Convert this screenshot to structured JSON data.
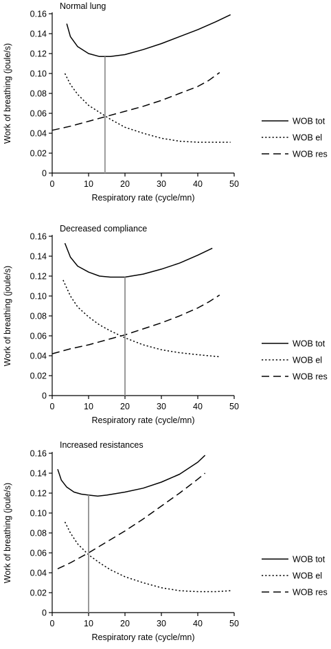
{
  "chart_data": [
    {
      "type": "line",
      "title": "Normal lung",
      "xlabel": "Respiratory rate (cycle/mn)",
      "ylabel": "Work of breathing (joule/s)",
      "xlim": [
        0,
        50
      ],
      "ylim": [
        0,
        0.16
      ],
      "x_ticks": [
        "0",
        "10",
        "20",
        "30",
        "40",
        "50"
      ],
      "y_ticks": [
        "0",
        "0.02",
        "0.04",
        "0.06",
        "0.08",
        "0.10",
        "0.12",
        "0.14",
        "0.16"
      ],
      "grid": false,
      "legend_position": "right",
      "optimum_rate": 14.5,
      "series": [
        {
          "name": "WOB tot",
          "style": "solid",
          "x": [
            4,
            5,
            7,
            10,
            13,
            16,
            20,
            25,
            30,
            35,
            40,
            45,
            49
          ],
          "y": [
            0.15,
            0.137,
            0.127,
            0.12,
            0.117,
            0.117,
            0.119,
            0.124,
            0.13,
            0.137,
            0.144,
            0.152,
            0.159
          ]
        },
        {
          "name": "WOB el",
          "style": "dotted",
          "x": [
            3.5,
            5,
            7,
            10,
            13,
            16,
            20,
            25,
            30,
            35,
            40,
            45,
            49
          ],
          "y": [
            0.1,
            0.089,
            0.079,
            0.068,
            0.061,
            0.054,
            0.046,
            0.04,
            0.035,
            0.032,
            0.031,
            0.031,
            0.031
          ]
        },
        {
          "name": "WOB res",
          "style": "dashed",
          "x": [
            0,
            5,
            10,
            15,
            20,
            25,
            30,
            35,
            40,
            43,
            46
          ],
          "y": [
            0.043,
            0.047,
            0.052,
            0.057,
            0.062,
            0.067,
            0.073,
            0.08,
            0.087,
            0.093,
            0.101
          ]
        }
      ]
    },
    {
      "type": "line",
      "title": "Decreased compliance",
      "xlabel": "Respiratory rate (cycle/mn)",
      "ylabel": "Work of breathing (joule/s)",
      "xlim": [
        0,
        50
      ],
      "ylim": [
        0,
        0.16
      ],
      "x_ticks": [
        "0",
        "10",
        "20",
        "30",
        "40",
        "50"
      ],
      "y_ticks": [
        "0",
        "0.02",
        "0.04",
        "0.06",
        "0.08",
        "0.10",
        "0.12",
        "0.14",
        "0.16"
      ],
      "grid": false,
      "legend_position": "right",
      "optimum_rate": 20,
      "series": [
        {
          "name": "WOB tot",
          "style": "solid",
          "x": [
            3.5,
            5,
            7,
            10,
            13,
            16,
            20,
            25,
            30,
            35,
            40,
            44
          ],
          "y": [
            0.153,
            0.139,
            0.13,
            0.124,
            0.12,
            0.119,
            0.119,
            0.122,
            0.127,
            0.133,
            0.141,
            0.148
          ]
        },
        {
          "name": "WOB el",
          "style": "dotted",
          "x": [
            3,
            5,
            7,
            10,
            13,
            16,
            20,
            25,
            30,
            35,
            40,
            46
          ],
          "y": [
            0.116,
            0.1,
            0.089,
            0.079,
            0.071,
            0.065,
            0.058,
            0.051,
            0.046,
            0.043,
            0.041,
            0.039
          ]
        },
        {
          "name": "WOB res",
          "style": "dashed",
          "x": [
            0,
            5,
            10,
            15,
            20,
            25,
            30,
            35,
            40,
            43,
            46
          ],
          "y": [
            0.042,
            0.047,
            0.051,
            0.056,
            0.061,
            0.067,
            0.073,
            0.08,
            0.088,
            0.094,
            0.101
          ]
        }
      ]
    },
    {
      "type": "line",
      "title": "Increased resistances",
      "xlabel": "Respiratory rate (cycle/mn)",
      "ylabel": "Work of breathing (joule/s)",
      "xlim": [
        0,
        50
      ],
      "ylim": [
        0,
        0.16
      ],
      "x_ticks": [
        "0",
        "10",
        "20",
        "30",
        "40",
        "50"
      ],
      "y_ticks": [
        "0",
        "0.02",
        "0.04",
        "0.06",
        "0.08",
        "0.10",
        "0.12",
        "0.14",
        "0.16"
      ],
      "grid": false,
      "legend_position": "right",
      "optimum_rate": 10,
      "series": [
        {
          "name": "WOB tot",
          "style": "solid",
          "x": [
            1.5,
            2.5,
            4,
            6,
            8,
            10,
            12.5,
            15,
            20,
            25,
            30,
            35,
            40,
            42
          ],
          "y": [
            0.144,
            0.133,
            0.126,
            0.121,
            0.119,
            0.118,
            0.117,
            0.118,
            0.121,
            0.125,
            0.131,
            0.139,
            0.151,
            0.158
          ]
        },
        {
          "name": "WOB el",
          "style": "dotted",
          "x": [
            3.5,
            5,
            7,
            10,
            13,
            16,
            20,
            25,
            30,
            35,
            40,
            45,
            49
          ],
          "y": [
            0.091,
            0.08,
            0.069,
            0.058,
            0.05,
            0.043,
            0.036,
            0.03,
            0.025,
            0.022,
            0.021,
            0.021,
            0.022
          ]
        },
        {
          "name": "WOB res",
          "style": "dashed",
          "x": [
            1.5,
            5,
            10,
            15,
            20,
            25,
            30,
            35,
            40,
            42
          ],
          "y": [
            0.044,
            0.05,
            0.06,
            0.071,
            0.082,
            0.094,
            0.107,
            0.12,
            0.134,
            0.14
          ]
        }
      ]
    }
  ]
}
